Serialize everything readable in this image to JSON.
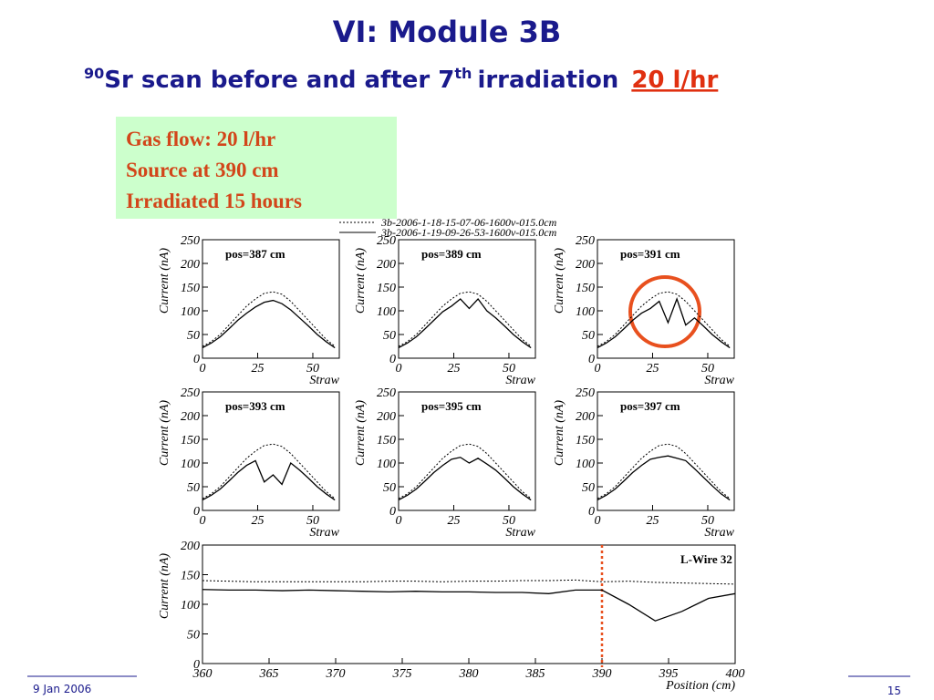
{
  "slide": {
    "title": "VI: Module 3B",
    "sup1": "90",
    "sub1": "Sr scan before and after 7",
    "sup2": "th",
    "sub2": "irradiation",
    "sub3": "20 l/hr",
    "box": [
      "Gas flow: 20 l/hr",
      "Source at 390 cm",
      "Irradiated 15 hours"
    ],
    "footer_left": "9 Jan 2006",
    "footer_right": "15"
  },
  "chart_data": [
    {
      "type": "line",
      "title": "pos=387 cm",
      "x_label": "Straw",
      "y_label": "Current (nA)",
      "x": [
        0,
        4,
        8,
        12,
        16,
        20,
        24,
        28,
        32,
        36,
        40,
        44,
        48,
        52,
        56,
        60
      ],
      "xlim": [
        0,
        62
      ],
      "xticks": [
        0,
        25,
        50
      ],
      "ylim": [
        0,
        250
      ],
      "yticks": [
        0,
        50,
        100,
        150,
        200,
        250
      ],
      "series": [
        {
          "name": "3b-2006-1-18-15-07-06-1600v-015.0cm",
          "color": "#000000",
          "dash": "dotted",
          "values": [
            25,
            35,
            50,
            70,
            90,
            110,
            125,
            137,
            140,
            135,
            120,
            100,
            80,
            60,
            40,
            25
          ]
        },
        {
          "name": "3b-2006-1-19-09-26-53-1600v-015.0cm",
          "color": "#000000",
          "dash": "solid",
          "values": [
            22,
            32,
            45,
            62,
            80,
            95,
            108,
            118,
            122,
            115,
            102,
            85,
            68,
            50,
            35,
            22
          ]
        }
      ]
    },
    {
      "type": "line",
      "title": "pos=389 cm",
      "x_label": "Straw",
      "y_label": "Current (nA)",
      "x": [
        0,
        4,
        8,
        12,
        16,
        20,
        24,
        28,
        32,
        36,
        40,
        44,
        48,
        52,
        56,
        60
      ],
      "xlim": [
        0,
        62
      ],
      "xticks": [
        0,
        25,
        50
      ],
      "ylim": [
        0,
        250
      ],
      "yticks": [
        0,
        50,
        100,
        150,
        200,
        250
      ],
      "series": [
        {
          "color": "#000000",
          "dash": "dotted",
          "values": [
            25,
            35,
            50,
            70,
            90,
            110,
            125,
            137,
            140,
            135,
            120,
            100,
            80,
            60,
            40,
            25
          ]
        },
        {
          "color": "#000000",
          "dash": "solid",
          "values": [
            22,
            32,
            45,
            62,
            80,
            98,
            110,
            125,
            105,
            125,
            100,
            85,
            68,
            50,
            35,
            22
          ]
        }
      ]
    },
    {
      "type": "line",
      "title": "pos=391 cm",
      "x_label": "Straw",
      "y_label": "Current (nA)",
      "x": [
        0,
        4,
        8,
        12,
        16,
        20,
        24,
        28,
        32,
        36,
        40,
        44,
        48,
        52,
        56,
        60
      ],
      "xlim": [
        0,
        62
      ],
      "xticks": [
        0,
        25,
        50
      ],
      "ylim": [
        0,
        250
      ],
      "yticks": [
        0,
        50,
        100,
        150,
        200,
        250
      ],
      "series": [
        {
          "color": "#000000",
          "dash": "dotted",
          "values": [
            25,
            35,
            50,
            70,
            90,
            110,
            125,
            137,
            140,
            135,
            120,
            100,
            80,
            60,
            40,
            25
          ]
        },
        {
          "color": "#000000",
          "dash": "solid",
          "values": [
            22,
            32,
            45,
            62,
            80,
            95,
            105,
            120,
            75,
            125,
            70,
            85,
            68,
            50,
            35,
            22
          ]
        }
      ]
    },
    {
      "type": "line",
      "title": "pos=393 cm",
      "x_label": "Straw",
      "y_label": "Current (nA)",
      "x": [
        0,
        4,
        8,
        12,
        16,
        20,
        24,
        28,
        32,
        36,
        40,
        44,
        48,
        52,
        56,
        60
      ],
      "xlim": [
        0,
        62
      ],
      "xticks": [
        0,
        25,
        50
      ],
      "ylim": [
        0,
        250
      ],
      "yticks": [
        0,
        50,
        100,
        150,
        200,
        250
      ],
      "series": [
        {
          "color": "#000000",
          "dash": "dotted",
          "values": [
            25,
            35,
            50,
            70,
            90,
            110,
            125,
            137,
            140,
            135,
            120,
            100,
            80,
            60,
            40,
            25
          ]
        },
        {
          "color": "#000000",
          "dash": "solid",
          "values": [
            22,
            32,
            45,
            62,
            80,
            95,
            105,
            60,
            75,
            55,
            100,
            85,
            68,
            50,
            35,
            22
          ]
        }
      ]
    },
    {
      "type": "line",
      "title": "pos=395 cm",
      "x_label": "Straw",
      "y_label": "Current (nA)",
      "x": [
        0,
        4,
        8,
        12,
        16,
        20,
        24,
        28,
        32,
        36,
        40,
        44,
        48,
        52,
        56,
        60
      ],
      "xlim": [
        0,
        62
      ],
      "xticks": [
        0,
        25,
        50
      ],
      "ylim": [
        0,
        250
      ],
      "yticks": [
        0,
        50,
        100,
        150,
        200,
        250
      ],
      "series": [
        {
          "color": "#000000",
          "dash": "dotted",
          "values": [
            25,
            35,
            50,
            70,
            90,
            110,
            125,
            137,
            140,
            135,
            120,
            100,
            80,
            60,
            40,
            25
          ]
        },
        {
          "color": "#000000",
          "dash": "solid",
          "values": [
            22,
            32,
            45,
            62,
            80,
            95,
            108,
            112,
            100,
            110,
            98,
            85,
            68,
            50,
            35,
            22
          ]
        }
      ]
    },
    {
      "type": "line",
      "title": "pos=397 cm",
      "x_label": "Straw",
      "y_label": "Current (nA)",
      "x": [
        0,
        4,
        8,
        12,
        16,
        20,
        24,
        28,
        32,
        36,
        40,
        44,
        48,
        52,
        56,
        60
      ],
      "xlim": [
        0,
        62
      ],
      "xticks": [
        0,
        25,
        50
      ],
      "ylim": [
        0,
        250
      ],
      "yticks": [
        0,
        50,
        100,
        150,
        200,
        250
      ],
      "series": [
        {
          "color": "#000000",
          "dash": "dotted",
          "values": [
            25,
            35,
            50,
            70,
            90,
            110,
            125,
            137,
            140,
            135,
            120,
            100,
            80,
            60,
            40,
            25
          ]
        },
        {
          "color": "#000000",
          "dash": "solid",
          "values": [
            22,
            32,
            45,
            62,
            80,
            95,
            108,
            112,
            115,
            110,
            105,
            88,
            70,
            52,
            35,
            22
          ]
        }
      ]
    },
    {
      "type": "line",
      "title": "L-Wire 32",
      "x_label": "Position (cm)",
      "y_label": "Current (nA)",
      "x": [
        360,
        362,
        364,
        366,
        368,
        370,
        372,
        374,
        376,
        378,
        380,
        382,
        384,
        386,
        388,
        390,
        392,
        394,
        396,
        398,
        400
      ],
      "xlim": [
        360,
        400
      ],
      "xticks": [
        360,
        365,
        370,
        375,
        380,
        385,
        390,
        395,
        400
      ],
      "ylim": [
        0,
        200
      ],
      "yticks": [
        0,
        50,
        100,
        150,
        200
      ],
      "vline": {
        "x": 390,
        "color": "#e8501e"
      },
      "series": [
        {
          "color": "#000000",
          "dash": "dotted",
          "values": [
            140,
            139,
            138,
            138,
            138,
            138,
            138,
            139,
            139,
            138,
            139,
            139,
            140,
            140,
            141,
            138,
            139,
            137,
            136,
            135,
            134
          ]
        },
        {
          "color": "#000000",
          "dash": "solid",
          "values": [
            125,
            124,
            124,
            123,
            124,
            123,
            122,
            121,
            122,
            121,
            121,
            120,
            120,
            118,
            124,
            124,
            100,
            72,
            88,
            110,
            118
          ]
        }
      ]
    }
  ]
}
